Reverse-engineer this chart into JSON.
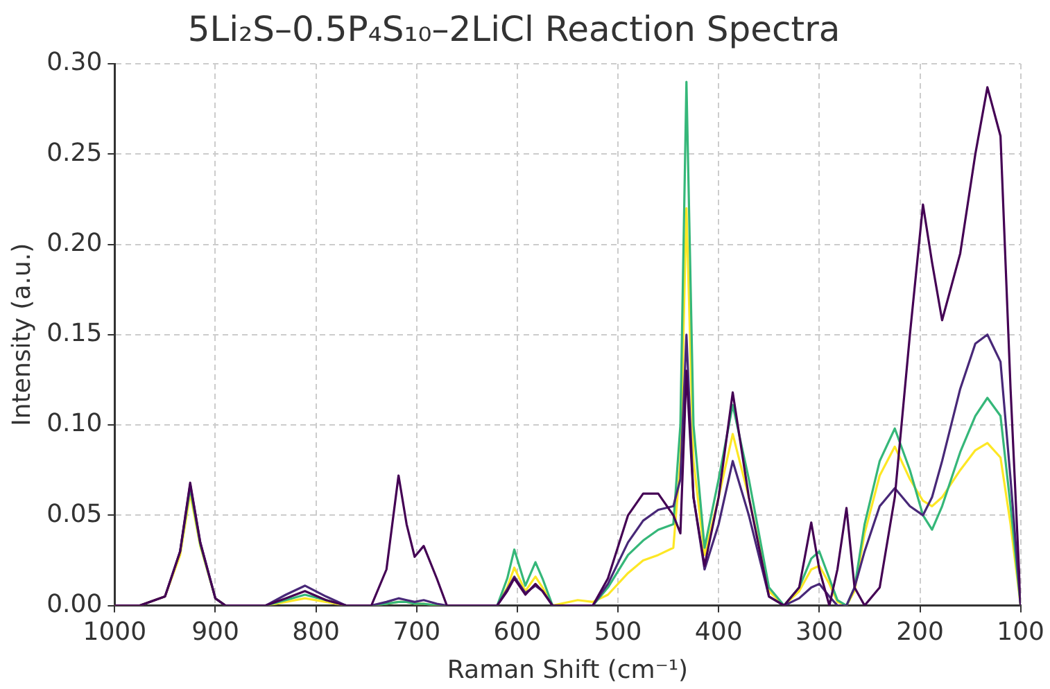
{
  "chart_data": {
    "type": "line",
    "title": "5Li₂S–0.5P₄S₁₀–2LiCl Reaction Spectra",
    "xlabel": "Raman Shift (cm⁻¹)",
    "ylabel": "Intensity (a.u.)",
    "x": [
      1000,
      975,
      950,
      935,
      925,
      915,
      900,
      890,
      850,
      830,
      811,
      790,
      770,
      745,
      730,
      718,
      710,
      702,
      693,
      680,
      670,
      640,
      620,
      610,
      603,
      592,
      582,
      575,
      565,
      540,
      525,
      510,
      490,
      475,
      460,
      445,
      438,
      432,
      425,
      414,
      400,
      386,
      370,
      350,
      335,
      320,
      308,
      300,
      290,
      282,
      273,
      265,
      255,
      240,
      225,
      210,
      197,
      188,
      178,
      160,
      145,
      133,
      120,
      110,
      100
    ],
    "series": [
      {
        "color": "#440154",
        "values": [
          0,
          0,
          0.005,
          0.03,
          0.068,
          0.035,
          0.004,
          0,
          0,
          0.004,
          0.008,
          0.003,
          0,
          0,
          0.02,
          0.072,
          0.045,
          0.027,
          0.033,
          0.015,
          0,
          0,
          0,
          0.008,
          0.015,
          0.006,
          0.012,
          0.008,
          0,
          0,
          0,
          0.015,
          0.05,
          0.062,
          0.062,
          0.05,
          0.04,
          0.13,
          0.06,
          0.022,
          0.06,
          0.118,
          0.06,
          0.005,
          0,
          0.01,
          0.046,
          0.02,
          0,
          0.02,
          0.054,
          0.01,
          0,
          0.01,
          0.06,
          0.15,
          0.222,
          0.19,
          0.158,
          0.195,
          0.25,
          0.287,
          0.26,
          0.12,
          0
        ]
      },
      {
        "color": "#482878",
        "values": [
          0,
          0,
          0.005,
          0.03,
          0.067,
          0.035,
          0.004,
          0,
          0,
          0.006,
          0.011,
          0.005,
          0,
          0,
          0.002,
          0.004,
          0.003,
          0.002,
          0.003,
          0.001,
          0,
          0,
          0,
          0.009,
          0.016,
          0.007,
          0.011,
          0.008,
          0,
          0,
          0,
          0.012,
          0.035,
          0.047,
          0.053,
          0.055,
          0.07,
          0.15,
          0.06,
          0.02,
          0.045,
          0.08,
          0.05,
          0.005,
          0,
          0.004,
          0.01,
          0.012,
          0.005,
          0,
          0,
          0.01,
          0.03,
          0.055,
          0.065,
          0.055,
          0.05,
          0.06,
          0.08,
          0.12,
          0.145,
          0.15,
          0.135,
          0.07,
          0
        ]
      },
      {
        "color": "#35b779",
        "values": [
          null,
          null,
          null,
          0.03,
          0.065,
          0.034,
          0.004,
          0,
          0,
          0.003,
          0.006,
          0.003,
          0,
          0,
          0.001,
          0.002,
          0.002,
          0.001,
          0.001,
          0,
          0,
          0,
          0,
          0.015,
          0.031,
          0.011,
          0.024,
          0.015,
          0,
          0,
          0,
          0.01,
          0.028,
          0.036,
          0.042,
          0.045,
          0.1,
          0.29,
          0.1,
          0.032,
          0.07,
          0.111,
          0.07,
          0.01,
          0,
          0.01,
          0.026,
          0.03,
          0.015,
          0.003,
          0,
          0.01,
          0.045,
          0.08,
          0.098,
          0.075,
          0.05,
          0.042,
          0.055,
          0.085,
          0.105,
          0.115,
          0.105,
          0.055,
          0
        ]
      },
      {
        "color": "#fde725",
        "values": [
          0,
          0,
          0.005,
          0.028,
          0.062,
          0.033,
          0.004,
          0,
          0,
          0.002,
          0.004,
          0.002,
          0,
          0,
          0.001,
          0.002,
          0.002,
          0.001,
          0.001,
          0,
          0,
          0,
          0,
          0.01,
          0.021,
          0.008,
          0.016,
          0.01,
          0,
          0.003,
          0.002,
          0.006,
          0.018,
          0.025,
          0.028,
          0.032,
          0.08,
          0.22,
          0.08,
          0.028,
          0.06,
          0.095,
          0.06,
          0.008,
          0,
          0.008,
          0.02,
          0.022,
          0.012,
          0.002,
          0,
          0.008,
          0.04,
          0.072,
          0.088,
          0.07,
          0.058,
          0.055,
          0.06,
          0.075,
          0.086,
          0.09,
          0.082,
          0.045,
          0
        ]
      }
    ],
    "xlim": [
      1000,
      100
    ],
    "xticks": [
      1000,
      900,
      800,
      700,
      600,
      500,
      400,
      300,
      200,
      100
    ],
    "ylim": [
      0,
      0.3
    ],
    "yticks": [
      {
        "value": 0,
        "label": "0.00"
      },
      0.05,
      {
        "value": 0.1,
        "label": "0.10"
      },
      0.15,
      {
        "value": 0.2,
        "label": "0.20"
      },
      0.25,
      {
        "value": 0.3,
        "label": "0.30"
      }
    ],
    "grid": true,
    "legend": false,
    "marker": "none",
    "line_style": "solid"
  }
}
